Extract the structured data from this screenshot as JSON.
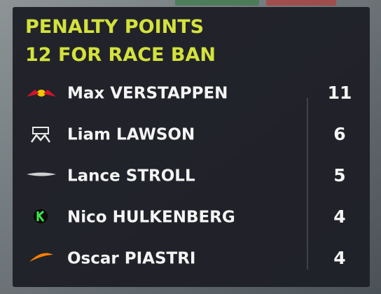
{
  "header": {
    "title": "PENALTY POINTS",
    "subtitle": "12 FOR RACE BAN"
  },
  "table": {
    "rows": [
      [
        "Max VERSTAPPEN",
        11
      ],
      [
        "Liam LAWSON",
        6
      ],
      [
        "Lance STROLL",
        5
      ],
      [
        "Nico HULKENBERG",
        4
      ],
      [
        "Oscar PIASTRI",
        4
      ]
    ]
  }
}
